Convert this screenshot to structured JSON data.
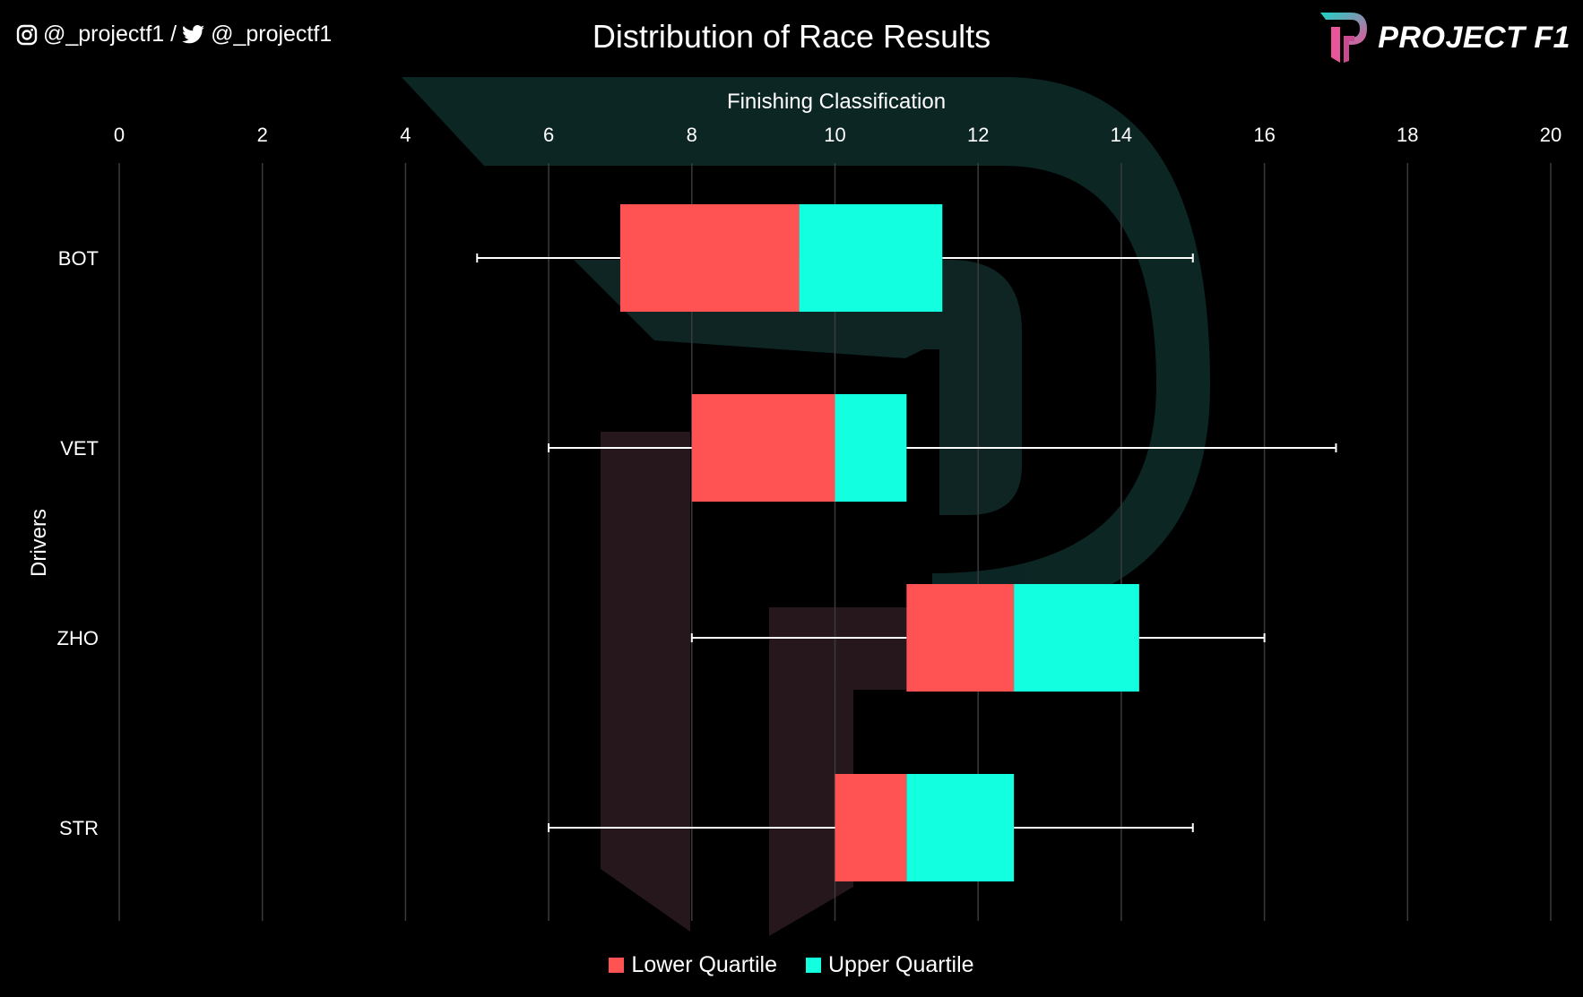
{
  "header": {
    "title": "Distribution of Race Results",
    "instagram_handle": "@_projectf1 /",
    "twitter_handle": "@_projectf1",
    "brand": "PROJECT F1"
  },
  "colors": {
    "background": "#000000",
    "lower_quartile": "#ff5252",
    "upper_quartile": "#12ffe0",
    "grid": "#3a3a3a",
    "whisker": "#ffffff",
    "logo_teal": "#19d3c5",
    "logo_pink": "#e8559a"
  },
  "chart_data": {
    "type": "bar",
    "subtype": "horizontal-box-plot",
    "title": "Distribution of Race Results",
    "xlabel": "Finishing Classification",
    "ylabel": "Drivers",
    "xlim": [
      0,
      20
    ],
    "xticks": [
      0,
      2,
      4,
      6,
      8,
      10,
      12,
      14,
      16,
      18,
      20
    ],
    "grid": true,
    "legend": "bottom",
    "categories": [
      "BOT",
      "VET",
      "ZHO",
      "STR"
    ],
    "series": [
      {
        "name": "Lower Quartile",
        "color": "#ff5252"
      },
      {
        "name": "Upper Quartile",
        "color": "#12ffe0"
      }
    ],
    "boxes": [
      {
        "driver": "BOT",
        "min": 5,
        "q1": 7,
        "median": 9.5,
        "q3": 11.5,
        "max": 15
      },
      {
        "driver": "VET",
        "min": 6,
        "q1": 8,
        "median": 10,
        "q3": 11,
        "max": 17
      },
      {
        "driver": "ZHO",
        "min": 8,
        "q1": 11,
        "median": 12.5,
        "q3": 14.25,
        "max": 16
      },
      {
        "driver": "STR",
        "min": 6,
        "q1": 10,
        "median": 11,
        "q3": 12.5,
        "max": 15
      }
    ]
  }
}
